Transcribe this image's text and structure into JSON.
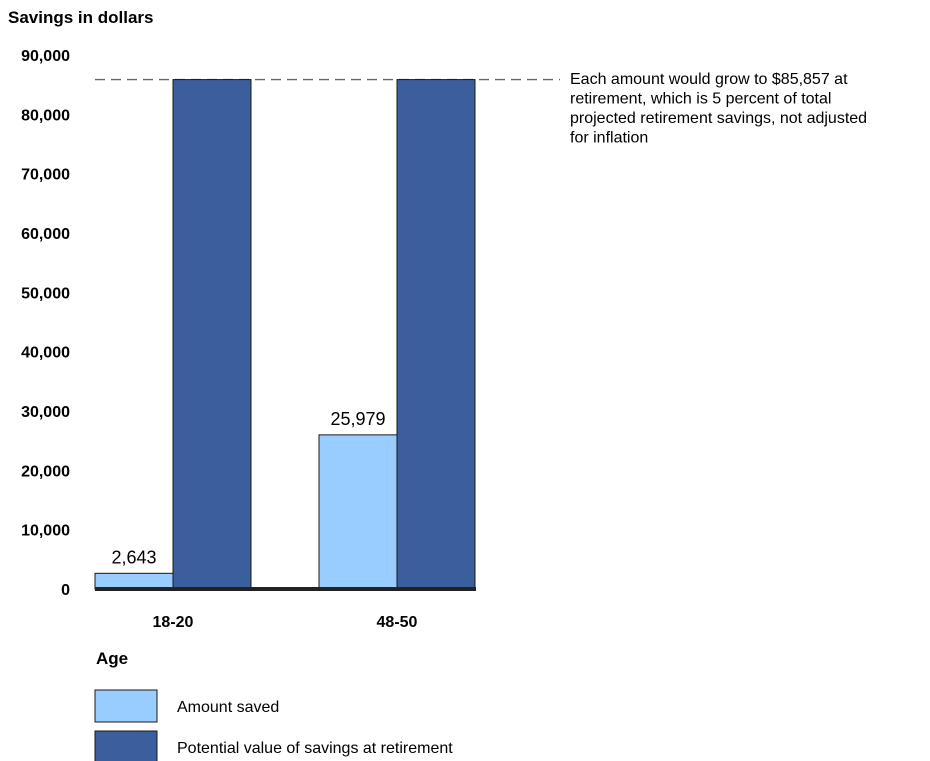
{
  "chart_data": {
    "type": "bar",
    "ylabel": "Savings in dollars",
    "xlabel": "Age",
    "ylim": [
      0,
      90000
    ],
    "yticks": [
      "0",
      "10,000",
      "20,000",
      "30,000",
      "40,000",
      "50,000",
      "60,000",
      "70,000",
      "80,000",
      "90,000"
    ],
    "categories": [
      "18-20",
      "48-50"
    ],
    "series": [
      {
        "name": "Amount saved",
        "color": "#99ccff",
        "values": [
          2643,
          25979
        ],
        "labels": [
          "2,643",
          "25,979"
        ]
      },
      {
        "name": "Potential value of savings at retirement",
        "color": "#3a5f9c",
        "values": [
          85857,
          85857
        ]
      }
    ],
    "reference_line": {
      "value": 85857,
      "style": "dashed"
    },
    "annotation": [
      "Each amount would grow to $85,857 at",
      "retirement, which is 5 percent of total",
      "projected retirement savings, not adjusted",
      "for inflation"
    ],
    "grid": false,
    "legend_position": "bottom-left"
  }
}
